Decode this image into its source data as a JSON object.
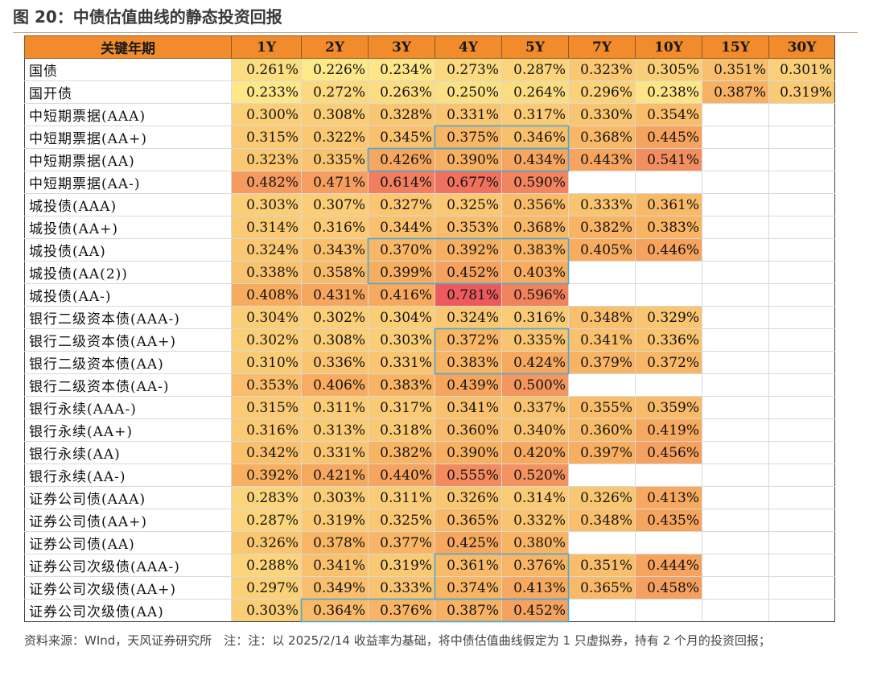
{
  "title": "图 20：中债估值曲线的静态投资回报",
  "note": "资料来源：WInd，天风证券研究所　注：注：以 2025/2/14 收益率为基础，将中债估值曲线假定为 1 只虚拟券，持有 2 个月的投资回报；",
  "colors": {
    "header": "#f28b2c",
    "low": "#fde98a",
    "mid": "#f7ad5f",
    "high": "#ec5a5e",
    "highlight_box": "#4aa8d8"
  },
  "chart_data": {
    "type": "table",
    "columns": [
      "关键年期",
      "1Y",
      "2Y",
      "3Y",
      "4Y",
      "5Y",
      "7Y",
      "10Y",
      "15Y",
      "30Y"
    ],
    "rows": [
      {
        "name": "国债",
        "group": 0,
        "values": [
          "0.261%",
          "0.226%",
          "0.234%",
          "0.273%",
          "0.287%",
          "0.323%",
          "0.305%",
          "0.351%",
          "0.301%"
        ]
      },
      {
        "name": "国开债",
        "group": 0,
        "values": [
          "0.233%",
          "0.272%",
          "0.263%",
          "0.250%",
          "0.264%",
          "0.296%",
          "0.238%",
          "0.387%",
          "0.319%"
        ]
      },
      {
        "name": "中短期票据(AAA)",
        "group": 1,
        "values": [
          "0.300%",
          "0.308%",
          "0.328%",
          "0.331%",
          "0.317%",
          "0.330%",
          "0.354%",
          "",
          ""
        ]
      },
      {
        "name": "中短期票据(AA+)",
        "group": 1,
        "values": [
          "0.315%",
          "0.322%",
          "0.345%",
          "0.375%",
          "0.346%",
          "0.368%",
          "0.445%",
          "",
          ""
        ]
      },
      {
        "name": "中短期票据(AA)",
        "group": 1,
        "values": [
          "0.323%",
          "0.335%",
          "0.426%",
          "0.390%",
          "0.434%",
          "0.443%",
          "0.541%",
          "",
          ""
        ]
      },
      {
        "name": "中短期票据(AA-)",
        "group": 1,
        "values": [
          "0.482%",
          "0.471%",
          "0.614%",
          "0.677%",
          "0.590%",
          "",
          "",
          "",
          ""
        ]
      },
      {
        "name": "城投债(AAA)",
        "group": 2,
        "values": [
          "0.303%",
          "0.307%",
          "0.327%",
          "0.325%",
          "0.356%",
          "0.333%",
          "0.361%",
          "",
          ""
        ]
      },
      {
        "name": "城投债(AA+)",
        "group": 2,
        "values": [
          "0.314%",
          "0.316%",
          "0.344%",
          "0.353%",
          "0.368%",
          "0.382%",
          "0.383%",
          "",
          ""
        ]
      },
      {
        "name": "城投债(AA)",
        "group": 2,
        "values": [
          "0.324%",
          "0.343%",
          "0.370%",
          "0.392%",
          "0.383%",
          "0.405%",
          "0.446%",
          "",
          ""
        ]
      },
      {
        "name": "城投债(AA(2))",
        "group": 2,
        "values": [
          "0.338%",
          "0.358%",
          "0.399%",
          "0.452%",
          "0.403%",
          "",
          "",
          "",
          ""
        ]
      },
      {
        "name": "城投债(AA-)",
        "group": 2,
        "values": [
          "0.408%",
          "0.431%",
          "0.416%",
          "0.781%",
          "0.596%",
          "",
          "",
          "",
          ""
        ]
      },
      {
        "name": "银行二级资本债(AAA-)",
        "group": 3,
        "values": [
          "0.304%",
          "0.302%",
          "0.304%",
          "0.324%",
          "0.316%",
          "0.348%",
          "0.329%",
          "",
          ""
        ]
      },
      {
        "name": "银行二级资本债(AA+)",
        "group": 3,
        "values": [
          "0.302%",
          "0.308%",
          "0.303%",
          "0.372%",
          "0.335%",
          "0.341%",
          "0.336%",
          "",
          ""
        ]
      },
      {
        "name": "银行二级资本债(AA)",
        "group": 3,
        "values": [
          "0.310%",
          "0.336%",
          "0.331%",
          "0.383%",
          "0.424%",
          "0.379%",
          "0.372%",
          "",
          ""
        ]
      },
      {
        "name": "银行二级资本债(AA-)",
        "group": 3,
        "values": [
          "0.353%",
          "0.406%",
          "0.383%",
          "0.439%",
          "0.500%",
          "",
          "",
          "",
          ""
        ]
      },
      {
        "name": "银行永续(AAA-)",
        "group": 4,
        "values": [
          "0.315%",
          "0.311%",
          "0.317%",
          "0.341%",
          "0.337%",
          "0.355%",
          "0.359%",
          "",
          ""
        ]
      },
      {
        "name": "银行永续(AA+)",
        "group": 4,
        "values": [
          "0.316%",
          "0.313%",
          "0.318%",
          "0.360%",
          "0.340%",
          "0.360%",
          "0.419%",
          "",
          ""
        ]
      },
      {
        "name": "银行永续(AA)",
        "group": 4,
        "values": [
          "0.342%",
          "0.331%",
          "0.382%",
          "0.390%",
          "0.420%",
          "0.397%",
          "0.456%",
          "",
          ""
        ]
      },
      {
        "name": "银行永续(AA-)",
        "group": 4,
        "values": [
          "0.392%",
          "0.421%",
          "0.440%",
          "0.555%",
          "0.520%",
          "",
          "",
          "",
          ""
        ]
      },
      {
        "name": "证券公司债(AAA)",
        "group": 5,
        "values": [
          "0.283%",
          "0.303%",
          "0.311%",
          "0.326%",
          "0.314%",
          "0.326%",
          "0.413%",
          "",
          ""
        ]
      },
      {
        "name": "证券公司债(AA+)",
        "group": 5,
        "values": [
          "0.287%",
          "0.319%",
          "0.325%",
          "0.365%",
          "0.332%",
          "0.348%",
          "0.435%",
          "",
          ""
        ]
      },
      {
        "name": "证券公司债(AA)",
        "group": 5,
        "values": [
          "0.326%",
          "0.378%",
          "0.377%",
          "0.425%",
          "0.380%",
          "",
          "",
          "",
          ""
        ]
      },
      {
        "name": "证券公司次级债(AAA-)",
        "group": 6,
        "values": [
          "0.288%",
          "0.341%",
          "0.319%",
          "0.361%",
          "0.376%",
          "0.351%",
          "0.444%",
          "",
          ""
        ]
      },
      {
        "name": "证券公司次级债(AA+)",
        "group": 6,
        "values": [
          "0.297%",
          "0.349%",
          "0.333%",
          "0.374%",
          "0.413%",
          "0.365%",
          "0.458%",
          "",
          ""
        ]
      },
      {
        "name": "证券公司次级债(AA)",
        "group": 6,
        "values": [
          "0.303%",
          "0.364%",
          "0.376%",
          "0.387%",
          "0.452%",
          "",
          "",
          "",
          ""
        ]
      }
    ],
    "highlight_boxes": [
      {
        "rows": [
          3,
          3
        ],
        "cols": [
          4,
          5
        ]
      },
      {
        "rows": [
          4,
          4
        ],
        "cols": [
          3,
          5
        ]
      },
      {
        "rows": [
          8,
          9
        ],
        "cols": [
          3,
          5
        ]
      },
      {
        "rows": [
          12,
          13
        ],
        "cols": [
          4,
          5
        ]
      },
      {
        "rows": [
          22,
          23
        ],
        "cols": [
          4,
          5
        ]
      },
      {
        "rows": [
          24,
          24
        ],
        "cols": [
          2,
          5
        ]
      }
    ],
    "color_scale": {
      "min": 0.226,
      "mid": 0.4,
      "max": 0.781
    }
  }
}
